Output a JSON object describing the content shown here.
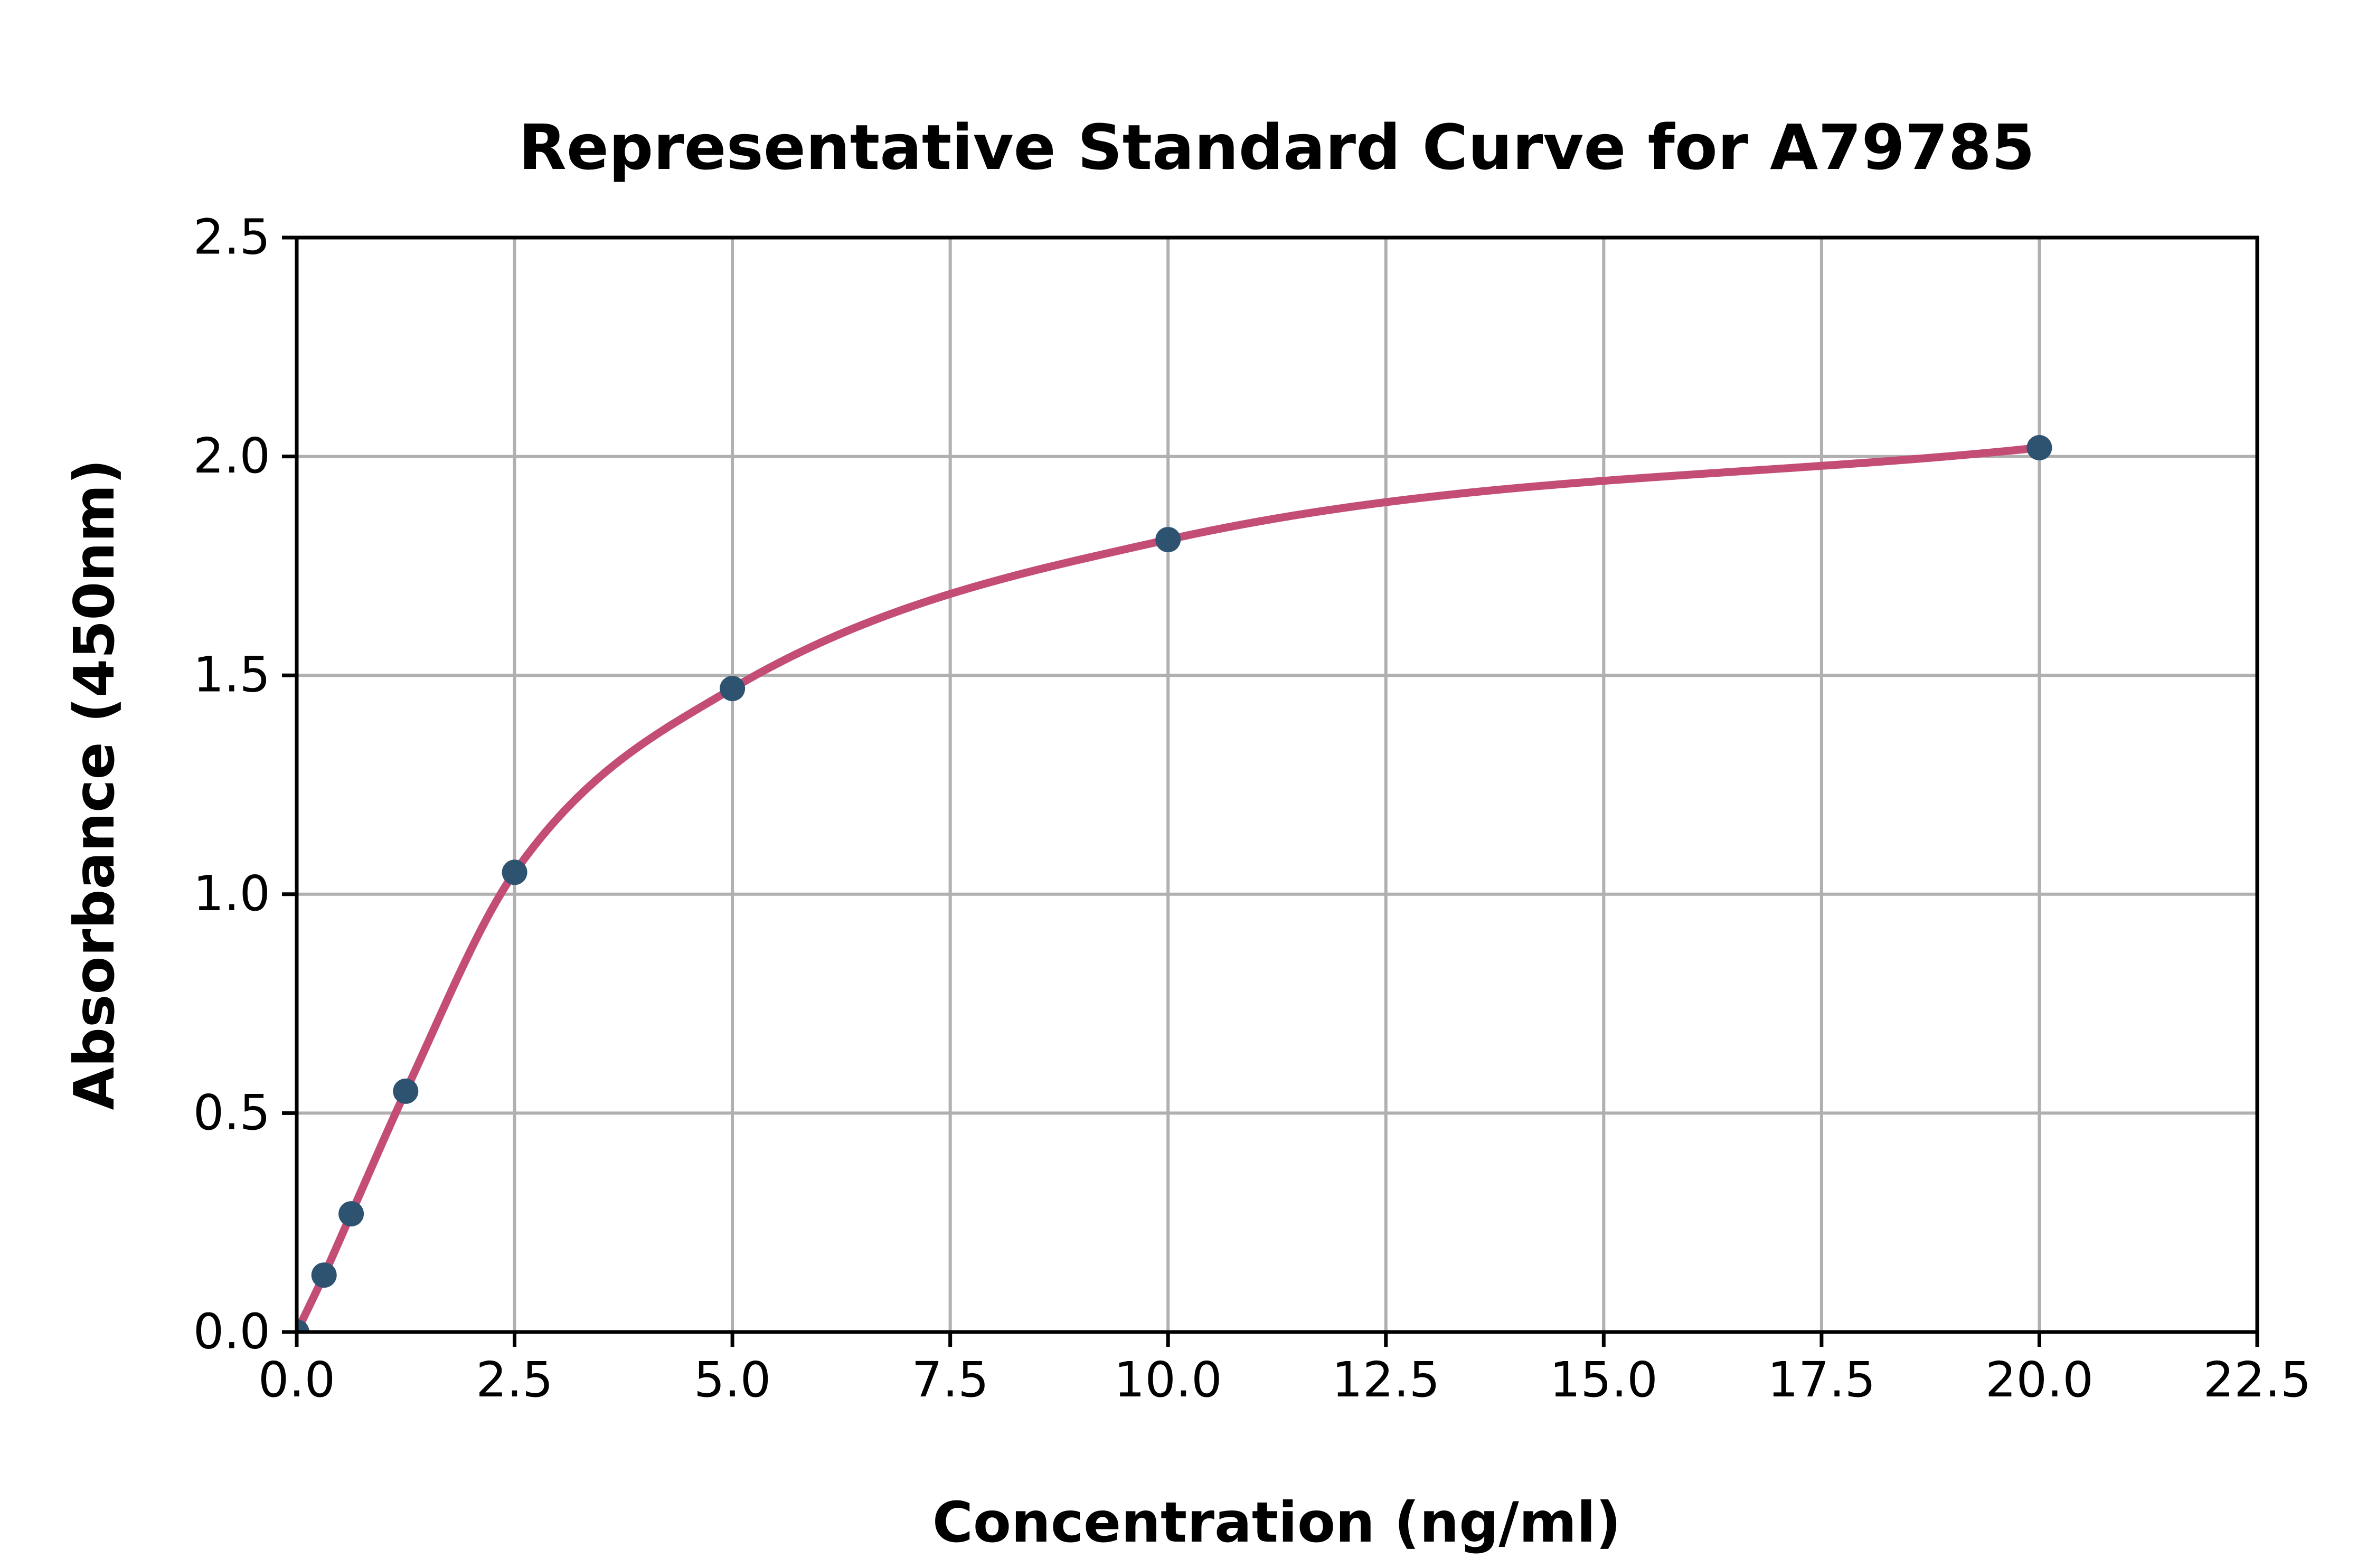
{
  "chart_data": {
    "type": "scatter",
    "title": "Representative Standard Curve for A79785",
    "xlabel": "Concentration (ng/ml)",
    "ylabel": "Absorbance (450nm)",
    "xlim": [
      0,
      22.5
    ],
    "ylim": [
      0,
      2.5
    ],
    "xticks": [
      0,
      2.5,
      5,
      7.5,
      10,
      12.5,
      15,
      17.5,
      20,
      22.5
    ],
    "xtick_labels": [
      "0.0",
      "2.5",
      "5.0",
      "7.5",
      "10.0",
      "12.5",
      "15.0",
      "17.5",
      "20.0",
      "22.5"
    ],
    "yticks": [
      0,
      0.5,
      1,
      1.5,
      2,
      2.5
    ],
    "ytick_labels": [
      "0.0",
      "0.5",
      "1.0",
      "1.5",
      "2.0",
      "2.5"
    ],
    "grid": true,
    "legend": false,
    "series": [
      {
        "name": "standards-with-fit-curve",
        "x": [
          0,
          0.313,
          0.625,
          1.25,
          2.5,
          5,
          10,
          20
        ],
        "y": [
          0.0,
          0.13,
          0.27,
          0.55,
          1.05,
          1.47,
          1.81,
          2.02
        ],
        "curve_x_range": [
          0,
          20
        ],
        "marker_color": "#2e5370",
        "line_color": "#c44d76"
      }
    ],
    "colors": {
      "grid": "#b0b0b0",
      "axis": "#000000",
      "text": "#000000",
      "background": "#ffffff"
    }
  }
}
